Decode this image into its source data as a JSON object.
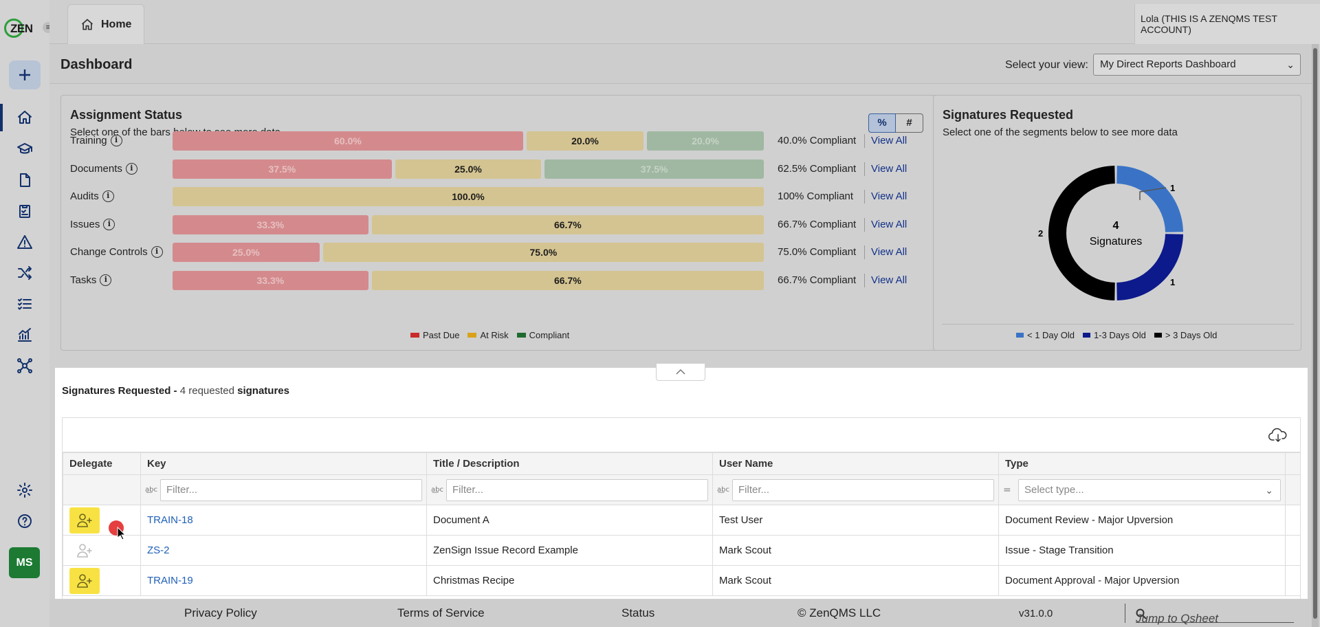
{
  "app": {
    "logo_text": "ZEN",
    "hamburger": "≡"
  },
  "topbar": {
    "home_tab": "Home",
    "user": "Lola (THIS IS A ZENQMS TEST ACCOUNT)"
  },
  "nav": {
    "avatar_initials": "MS"
  },
  "dashboard": {
    "title": "Dashboard",
    "view_label": "Select your view:",
    "view_selected": "My Direct Reports Dashboard"
  },
  "assignment": {
    "title": "Assignment Status",
    "subtitle": "Select one of the bars below to see more data",
    "toggle_percent": "%",
    "toggle_count": "#",
    "view_all": "View All",
    "rows": [
      {
        "label": "Training",
        "past": 60.0,
        "risk": 20.0,
        "comp": 20.0,
        "past_label": "60.0%",
        "risk_label": "20.0%",
        "comp_label": "20.0%",
        "compliant": "40.0% Compliant"
      },
      {
        "label": "Documents",
        "past": 37.5,
        "risk": 25.0,
        "comp": 37.5,
        "past_label": "37.5%",
        "risk_label": "25.0%",
        "comp_label": "37.5%",
        "compliant": "62.5% Compliant"
      },
      {
        "label": "Audits",
        "past": 0,
        "risk": 100.0,
        "comp": 0,
        "past_label": "",
        "risk_label": "100.0%",
        "comp_label": "",
        "compliant": "100% Compliant"
      },
      {
        "label": "Issues",
        "past": 33.3,
        "risk": 66.7,
        "comp": 0,
        "past_label": "33.3%",
        "risk_label": "66.7%",
        "comp_label": "",
        "compliant": "66.7% Compliant"
      },
      {
        "label": "Change Controls",
        "past": 25.0,
        "risk": 75.0,
        "comp": 0,
        "past_label": "25.0%",
        "risk_label": "75.0%",
        "comp_label": "",
        "compliant": "75.0% Compliant"
      },
      {
        "label": "Tasks",
        "past": 33.3,
        "risk": 66.7,
        "comp": 0,
        "past_label": "33.3%",
        "risk_label": "66.7%",
        "comp_label": "",
        "compliant": "66.7% Compliant"
      }
    ],
    "legend": [
      {
        "label": "Past Due",
        "color": "#c92a2a"
      },
      {
        "label": "At Risk",
        "color": "#d9a21b"
      },
      {
        "label": "Compliant",
        "color": "#1f6b2e"
      }
    ]
  },
  "signatures_panel": {
    "title": "Signatures Requested",
    "subtitle": "Select one of the segments below to see more data",
    "center_count": "4",
    "center_label": "Signatures",
    "segments": [
      {
        "label": "< 1 Day Old",
        "value": 1,
        "color": "#3a73c6"
      },
      {
        "label": "1-3 Days Old",
        "value": 1,
        "color": "#0d1a8c"
      },
      {
        "label": "> 3 Days Old",
        "value": 2,
        "color": "#000000"
      }
    ],
    "value_labels": [
      "1",
      "1",
      "2"
    ]
  },
  "sheet": {
    "title": "Signatures Requested -",
    "count_text": "4 requested",
    "suffix": "signatures",
    "columns": [
      "Delegate",
      "Key",
      "Title / Description",
      "User Name",
      "Type"
    ],
    "filter_placeholder": "Filter...",
    "type_placeholder": "Select type...",
    "rows": [
      {
        "key": "TRAIN-18",
        "title": "Document A",
        "user": "Test User",
        "type": "Document Review - Major Upversion",
        "delegate_enabled": true
      },
      {
        "key": "ZS-2",
        "title": "ZenSign Issue Record Example",
        "user": "Mark Scout",
        "type": "Issue - Stage Transition",
        "delegate_enabled": false
      },
      {
        "key": "TRAIN-19",
        "title": "Christmas Recipe",
        "user": "Mark Scout",
        "type": "Document Approval - Major Upversion",
        "delegate_enabled": true
      }
    ]
  },
  "footer": {
    "privacy": "Privacy Policy",
    "terms": "Terms of Service",
    "status": "Status",
    "copyright": "© ZenQMS LLC",
    "version": "v31.0.0",
    "jump": "Jump to Qsheet"
  }
}
